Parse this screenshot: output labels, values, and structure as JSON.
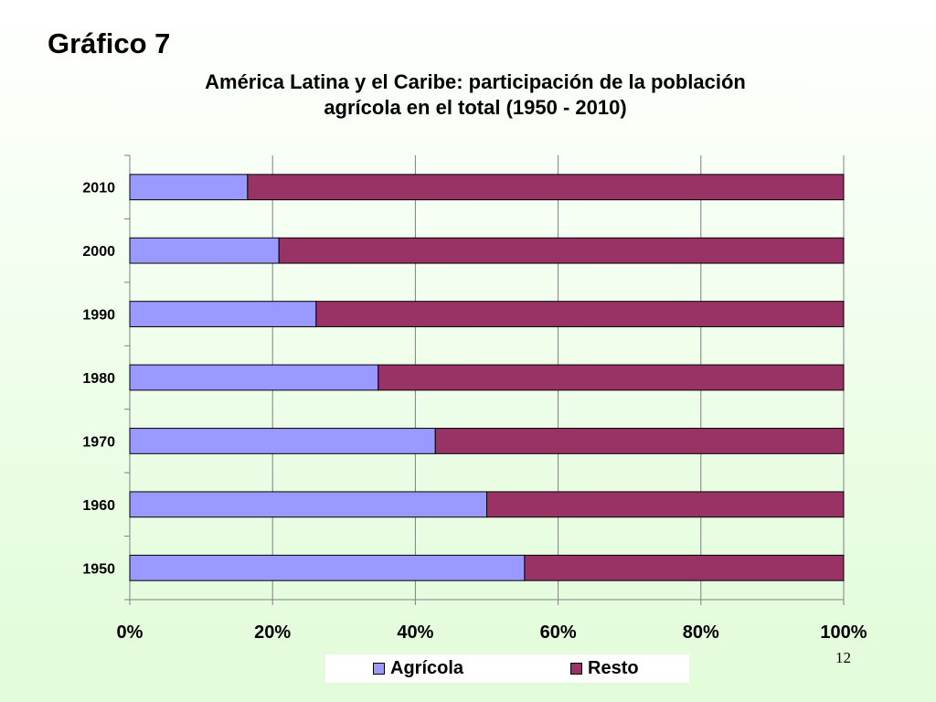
{
  "slide": {
    "heading": "Gráfico 7",
    "page_number": "12"
  },
  "chart_data": {
    "type": "bar",
    "orientation": "horizontal",
    "stacked": "percent",
    "title": "América Latina y el Caribe: participación de la población agrícola en el total (1950 - 2010)",
    "title_lines": [
      "América Latina y el Caribe: participación de la población",
      "agrícola en el total (1950 - 2010)"
    ],
    "categories": [
      "1950",
      "1960",
      "1970",
      "1980",
      "1990",
      "2000",
      "2010"
    ],
    "series": [
      {
        "name": "Agrícola",
        "color": "#9999ff",
        "values": [
          55.3,
          50.0,
          42.8,
          34.8,
          26.1,
          20.9,
          16.5
        ]
      },
      {
        "name": "Resto",
        "color": "#993366",
        "values": [
          44.7,
          50.0,
          57.2,
          65.2,
          73.9,
          79.1,
          83.5
        ]
      }
    ],
    "xlim": [
      0,
      100
    ],
    "x_ticks": [
      "0%",
      "20%",
      "40%",
      "60%",
      "80%",
      "100%"
    ],
    "grid": "vertical",
    "legend": "bottom"
  }
}
